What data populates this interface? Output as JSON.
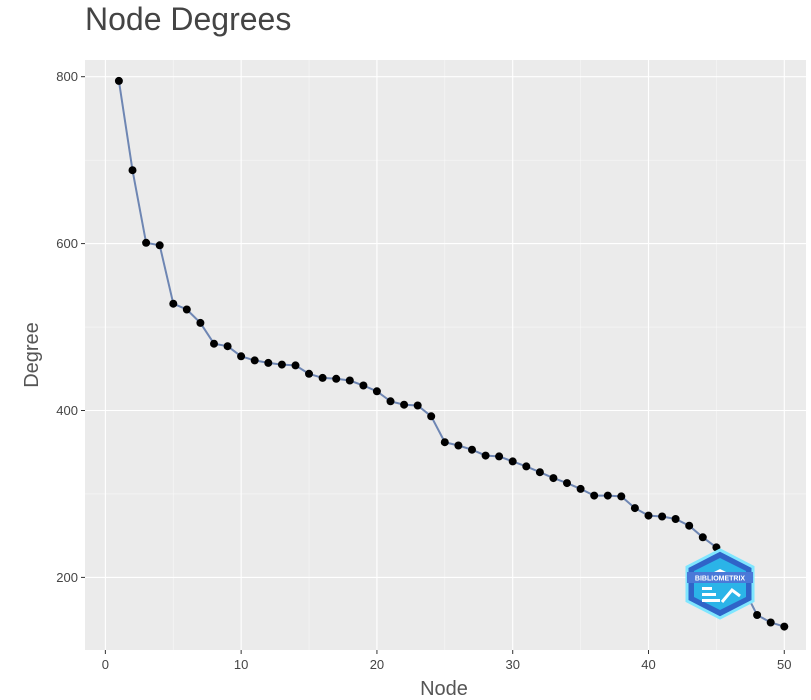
{
  "chart_data": {
    "type": "line",
    "title": "Node Degrees",
    "xlabel": "Node",
    "ylabel": "Degree",
    "xlim": [
      -1.5,
      51.6
    ],
    "ylim": [
      113,
      820
    ],
    "x_ticks": [
      0,
      10,
      20,
      30,
      40,
      50
    ],
    "y_ticks": [
      200,
      400,
      600,
      800
    ],
    "grid": true,
    "series": [
      {
        "x": [
          1,
          2,
          3,
          4,
          5,
          6,
          7,
          8,
          9,
          10,
          11,
          12,
          13,
          14,
          15,
          16,
          17,
          18,
          19,
          20,
          21,
          22,
          23,
          24,
          25,
          26,
          27,
          28,
          29,
          30,
          31,
          32,
          33,
          34,
          35,
          36,
          37,
          38,
          39,
          40,
          41,
          42,
          43,
          44,
          45,
          46,
          47,
          48,
          49,
          50
        ],
        "values": [
          795,
          688,
          601,
          598,
          528,
          521,
          505,
          480,
          477,
          465,
          460,
          457,
          455,
          454,
          444,
          439,
          438,
          436,
          430,
          423,
          411,
          407,
          406,
          393,
          362,
          358,
          353,
          346,
          345,
          339,
          333,
          326,
          319,
          313,
          306,
          298,
          298,
          297,
          283,
          274,
          273,
          270,
          262,
          248,
          236,
          191,
          187,
          155,
          146,
          141
        ]
      }
    ],
    "colors": {
      "line": "#6e86b3",
      "marker": "#000000",
      "panel": "#ebebeb",
      "grid": "#ffffff"
    }
  },
  "logo": {
    "text": "BIBLIOMETRIX"
  }
}
